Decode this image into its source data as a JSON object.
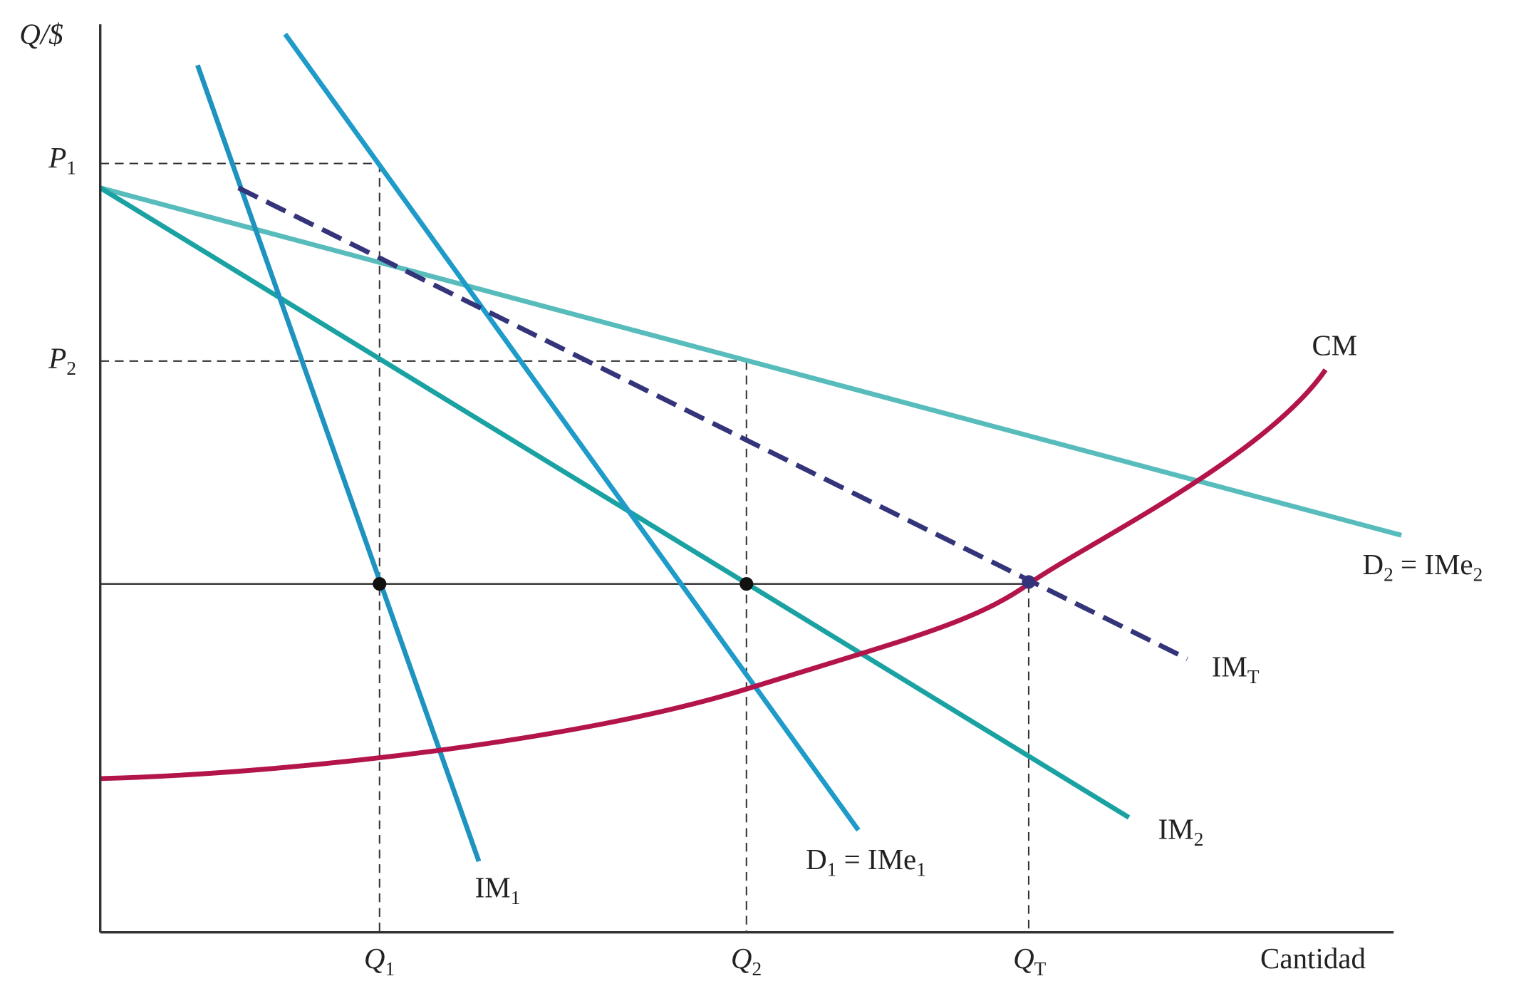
{
  "axes": {
    "y_label": "Q/$",
    "x_label": "Cantidad"
  },
  "y_labels": [
    {
      "main": "P",
      "sub": "1"
    },
    {
      "main": "P",
      "sub": "2"
    }
  ],
  "x_labels": [
    {
      "main": "Q",
      "sub": "1"
    },
    {
      "main": "Q",
      "sub": "2"
    },
    {
      "main": "Q",
      "sub": "T"
    }
  ],
  "curves": [
    {
      "main": "CM",
      "sub": ""
    },
    {
      "main": "D",
      "sub": "2",
      "rest": " = IMe",
      "sub2": "2"
    },
    {
      "main": "IM",
      "sub": "T"
    },
    {
      "main": "IM",
      "sub": "2"
    },
    {
      "main": "D",
      "sub": "1",
      "rest": " = IMe",
      "sub2": "1"
    },
    {
      "main": "IM",
      "sub": "1"
    }
  ]
}
